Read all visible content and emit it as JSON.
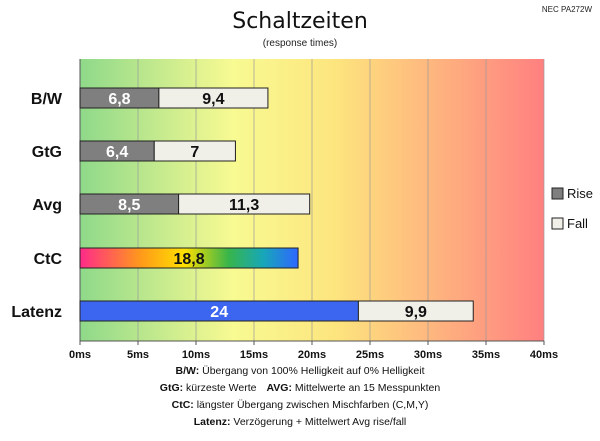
{
  "chart_data": {
    "type": "bar",
    "orientation": "horizontal",
    "stacked": true,
    "title": "Schaltzeiten",
    "subtitle": "(response times)",
    "model": "NEC PA272W",
    "categories": [
      "B/W",
      "GtG",
      "Avg",
      "CtC",
      "Latenz"
    ],
    "series": [
      {
        "name": "Rise",
        "values": [
          6.8,
          6.4,
          8.5,
          18.8,
          24
        ],
        "labels": [
          "6,8",
          "6,4",
          "8,5",
          "18,8",
          "24"
        ]
      },
      {
        "name": "Fall",
        "values": [
          9.4,
          7,
          11.3,
          null,
          9.9
        ],
        "labels": [
          "9,4",
          "7",
          "11,3",
          "",
          "9,9"
        ]
      }
    ],
    "xlim": [
      0,
      40
    ],
    "xticks": [
      0,
      5,
      10,
      15,
      20,
      25,
      30,
      35,
      40
    ],
    "xtick_labels": [
      "0ms",
      "5ms",
      "10ms",
      "15ms",
      "20ms",
      "25ms",
      "30ms",
      "35ms",
      "40ms"
    ],
    "grid": "vertical",
    "legend_position": "right",
    "background": "gradient green-yellow-red",
    "colors": {
      "rise": "#7f7f7f",
      "fall": "#f0efe8",
      "ctc_gradient": [
        "#ff2a8a",
        "#ff9a1a",
        "#ffe000",
        "#38b54a",
        "#17a7b8",
        "#2f67ff"
      ],
      "latenz_rise": "#3d66f0",
      "bg_gradient": [
        "#8ed98a",
        "#f8fa92",
        "#ff8080"
      ]
    }
  },
  "footnotes": [
    {
      "key": "B/W:",
      "text": "Übergang von 100% Helligkeit auf 0% Helligkeit"
    },
    {
      "key": "GtG:",
      "text": "kürzeste Werte",
      "key2": "AVG:",
      "text2": "Mittelwerte an 15 Messpunkten"
    },
    {
      "key": "CtC:",
      "text": "längster Übergang zwischen Mischfarben (C,M,Y)"
    },
    {
      "key": "Latenz:",
      "text": "Verzögerung + Mittelwert Avg rise/fall"
    }
  ]
}
